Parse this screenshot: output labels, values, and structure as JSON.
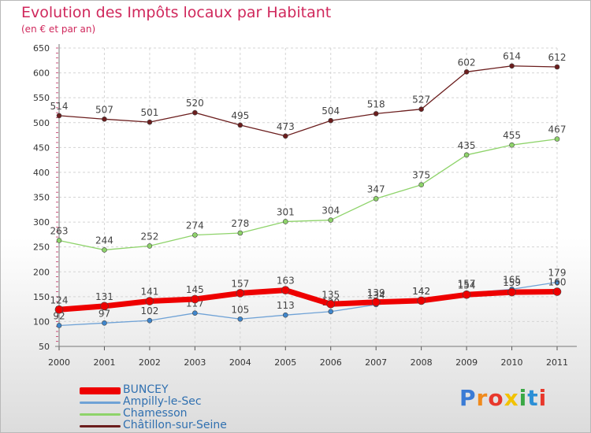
{
  "chart_title": "Evolution des Impôts locaux par Habitant",
  "chart_subtitle": "(en € et par an)",
  "brand": "Proxiti",
  "chart_data": {
    "type": "line",
    "title": "Evolution des Impôts locaux par Habitant",
    "subtitle": "(en € et par an)",
    "xlabel": "",
    "ylabel": "",
    "x": [
      "2000",
      "2001",
      "2002",
      "2003",
      "2004",
      "2005",
      "2006",
      "2007",
      "2008",
      "2009",
      "2010",
      "2011"
    ],
    "ylim": [
      50,
      650
    ],
    "yticks": [
      50,
      100,
      150,
      200,
      250,
      300,
      350,
      400,
      450,
      500,
      550,
      600,
      650
    ],
    "grid": true,
    "legend_position": "bottom-left",
    "series": [
      {
        "name": "Châtillon-sur-Seine",
        "color": "#6b1d1d",
        "dot": "#6b1d1d",
        "width": 1.3,
        "values": [
          514,
          507,
          501,
          520,
          495,
          473,
          504,
          518,
          527,
          602,
          614,
          612
        ]
      },
      {
        "name": "Chamesson",
        "color": "#8ed36a",
        "dot": "#8ed36a",
        "width": 1.3,
        "values": [
          263,
          244,
          252,
          274,
          278,
          301,
          304,
          347,
          375,
          435,
          455,
          467
        ]
      },
      {
        "name": "Ampilly-le-Sec",
        "color": "#6fa2d6",
        "dot": "#3f86cc",
        "width": 1.3,
        "values": [
          92,
          97,
          102,
          117,
          105,
          113,
          120,
          134,
          142,
          157,
          165,
          179
        ]
      },
      {
        "name": "BUNCEY",
        "color": "#ee0000",
        "dot": "#ee0000",
        "width": 7,
        "values": [
          124,
          131,
          141,
          145,
          157,
          163,
          135,
          139,
          142,
          154,
          159,
          160
        ]
      }
    ],
    "legend_order": [
      "BUNCEY",
      "Ampilly-le-Sec",
      "Chamesson",
      "Châtillon-sur-Seine"
    ]
  }
}
